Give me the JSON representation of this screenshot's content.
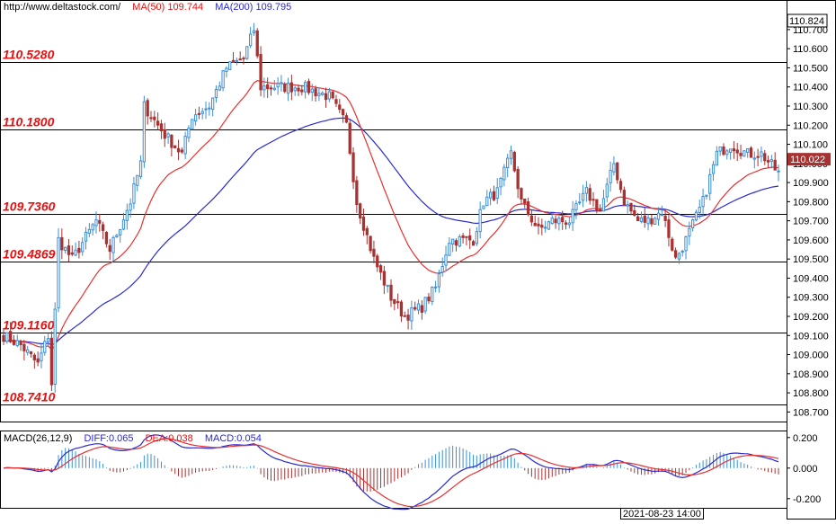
{
  "header": {
    "site": "http://www.deltastock.com/",
    "ma50_label": "MA(50)",
    "ma50_value": "109.744",
    "ma200_label": "MA(200)",
    "ma200_value": "109.795"
  },
  "macd_header": {
    "label": "MACD(26,12,9)",
    "diff": "DIFF:0.065",
    "dea": "DEA:0.038",
    "macd": "MACD:0.054"
  },
  "timestamp": "2021-08-23 14:00",
  "colors": {
    "up": "#3b8fd6",
    "down": "#a83232",
    "ma50": "#e83030",
    "ma200": "#2a2ad0",
    "level_label": "#e81010",
    "current_price_bg": "#a83232"
  },
  "chart_data": {
    "type": "candlestick",
    "ylim": [
      108.65,
      110.85
    ],
    "yticks": [
      "110.700",
      "110.600",
      "110.500",
      "110.400",
      "110.300",
      "110.200",
      "110.100",
      "110.000",
      "109.900",
      "109.800",
      "109.700",
      "109.600",
      "109.500",
      "109.400",
      "109.300",
      "109.200",
      "109.100",
      "109.000",
      "108.900",
      "108.800",
      "108.700"
    ],
    "top_price": "110.824",
    "current_price": "110.022",
    "levels": [
      {
        "value": 110.528,
        "label": "110.5280"
      },
      {
        "value": 110.18,
        "label": "110.1800"
      },
      {
        "value": 109.736,
        "label": "109.7360"
      },
      {
        "value": 109.4869,
        "label": "109.4869"
      },
      {
        "value": 109.116,
        "label": "109.1160"
      },
      {
        "value": 108.741,
        "label": "108.7410"
      }
    ],
    "anchors": [
      [
        0,
        109.1
      ],
      [
        5,
        109.05
      ],
      [
        10,
        108.95
      ],
      [
        13,
        109.1
      ],
      [
        14,
        108.85
      ],
      [
        16,
        109.6
      ],
      [
        20,
        109.5
      ],
      [
        27,
        109.7
      ],
      [
        31,
        109.55
      ],
      [
        37,
        109.8
      ],
      [
        40,
        110.0
      ],
      [
        41,
        110.3
      ],
      [
        47,
        110.15
      ],
      [
        52,
        110.05
      ],
      [
        55,
        110.25
      ],
      [
        60,
        110.3
      ],
      [
        65,
        110.5
      ],
      [
        70,
        110.55
      ],
      [
        73,
        110.7
      ],
      [
        75,
        110.4
      ],
      [
        80,
        110.4
      ],
      [
        87,
        110.4
      ],
      [
        95,
        110.35
      ],
      [
        100,
        110.2
      ],
      [
        103,
        109.8
      ],
      [
        108,
        109.5
      ],
      [
        113,
        109.3
      ],
      [
        117,
        109.2
      ],
      [
        122,
        109.25
      ],
      [
        126,
        109.35
      ],
      [
        130,
        109.6
      ],
      [
        137,
        109.6
      ],
      [
        140,
        109.8
      ],
      [
        144,
        109.85
      ],
      [
        148,
        110.05
      ],
      [
        151,
        109.8
      ],
      [
        156,
        109.65
      ],
      [
        160,
        109.7
      ],
      [
        165,
        109.7
      ],
      [
        170,
        109.85
      ],
      [
        174,
        109.75
      ],
      [
        178,
        110.0
      ],
      [
        181,
        109.8
      ],
      [
        185,
        109.7
      ],
      [
        188,
        109.7
      ],
      [
        192,
        109.75
      ],
      [
        196,
        109.5
      ],
      [
        199,
        109.6
      ],
      [
        204,
        109.8
      ],
      [
        208,
        110.05
      ],
      [
        212,
        110.1
      ],
      [
        217,
        110.05
      ],
      [
        221,
        110.05
      ],
      [
        226,
        109.95
      ]
    ],
    "y_macd_ticks": [
      "0.200",
      "0.000",
      "-0.200"
    ],
    "ylim_macd": [
      -0.26,
      0.24
    ]
  }
}
